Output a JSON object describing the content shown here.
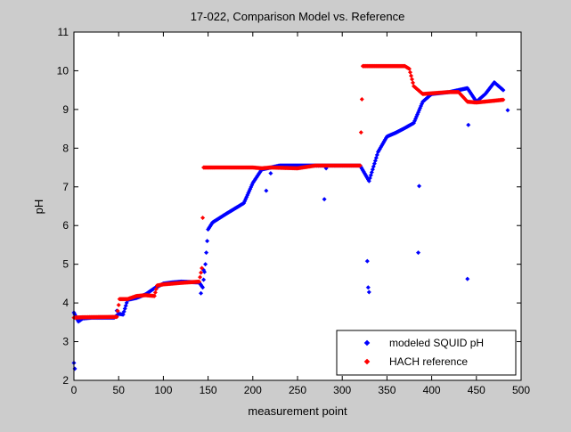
{
  "chart_data": {
    "type": "scatter",
    "title": "17-022, Comparison Model vs. Reference",
    "xlabel": "measurement point",
    "ylabel": "pH",
    "xlim": [
      0,
      500
    ],
    "ylim": [
      2,
      11
    ],
    "xticks": [
      "0",
      "50",
      "100",
      "150",
      "200",
      "250",
      "300",
      "350",
      "400",
      "450",
      "500"
    ],
    "yticks": [
      "2",
      "3",
      "4",
      "5",
      "6",
      "7",
      "8",
      "9",
      "10",
      "11"
    ],
    "legend_position": "bottom-right",
    "series": [
      {
        "name": "modeled SQUID pH",
        "color": "#0000ff",
        "marker": "diamond",
        "knots": [
          [
            0,
            3.75
          ],
          [
            5,
            3.52
          ],
          [
            10,
            3.6
          ],
          [
            20,
            3.62
          ],
          [
            45,
            3.62
          ],
          [
            50,
            3.72
          ],
          [
            55,
            3.7
          ],
          [
            60,
            4.08
          ],
          [
            70,
            4.13
          ],
          [
            80,
            4.22
          ],
          [
            90,
            4.38
          ],
          [
            100,
            4.5
          ],
          [
            110,
            4.53
          ],
          [
            120,
            4.55
          ],
          [
            140,
            4.53
          ],
          [
            144,
            4.4
          ],
          [
            147,
            5.0
          ],
          [
            150,
            5.9
          ],
          [
            155,
            6.08
          ],
          [
            170,
            6.3
          ],
          [
            190,
            6.58
          ],
          [
            200,
            7.1
          ],
          [
            210,
            7.45
          ],
          [
            220,
            7.5
          ],
          [
            230,
            7.55
          ],
          [
            260,
            7.55
          ],
          [
            300,
            7.55
          ],
          [
            320,
            7.55
          ],
          [
            325,
            7.35
          ],
          [
            330,
            7.15
          ],
          [
            340,
            7.9
          ],
          [
            350,
            8.3
          ],
          [
            360,
            8.4
          ],
          [
            370,
            8.52
          ],
          [
            380,
            8.65
          ],
          [
            390,
            9.2
          ],
          [
            400,
            9.4
          ],
          [
            420,
            9.45
          ],
          [
            440,
            9.55
          ],
          [
            450,
            9.2
          ],
          [
            460,
            9.4
          ],
          [
            470,
            9.7
          ],
          [
            480,
            9.5
          ]
        ],
        "outliers": [
          [
            0,
            2.45
          ],
          [
            1,
            2.3
          ],
          [
            48,
            3.8
          ],
          [
            142,
            4.25
          ],
          [
            145,
            4.85
          ],
          [
            215,
            6.9
          ],
          [
            280,
            6.68
          ],
          [
            282,
            7.48
          ],
          [
            328,
            5.08
          ],
          [
            329,
            4.4
          ],
          [
            330,
            4.28
          ],
          [
            386,
            7.02
          ],
          [
            385,
            5.3
          ],
          [
            440,
            4.62
          ],
          [
            441,
            8.6
          ],
          [
            485,
            8.98
          ],
          [
            220,
            7.35
          ],
          [
            255,
            7.52
          ]
        ]
      },
      {
        "name": "HACH reference",
        "color": "#ff0000",
        "marker": "diamond",
        "knots": [
          [
            0,
            3.62
          ],
          [
            10,
            3.63
          ],
          [
            48,
            3.64
          ],
          [
            51,
            4.1
          ],
          [
            60,
            4.1
          ],
          [
            70,
            4.18
          ],
          [
            80,
            4.2
          ],
          [
            90,
            4.18
          ],
          [
            93,
            4.45
          ],
          [
            100,
            4.48
          ],
          [
            120,
            4.52
          ],
          [
            140,
            4.55
          ],
          [
            143,
            4.9
          ],
          [
            145,
            7.5
          ],
          [
            200,
            7.5
          ],
          [
            210,
            7.48
          ],
          [
            220,
            7.5
          ],
          [
            250,
            7.48
          ],
          [
            270,
            7.55
          ],
          [
            300,
            7.55
          ],
          [
            320,
            7.55
          ],
          [
            323,
            10.12
          ],
          [
            370,
            10.12
          ],
          [
            375,
            10.05
          ],
          [
            380,
            9.6
          ],
          [
            390,
            9.4
          ],
          [
            420,
            9.45
          ],
          [
            430,
            9.45
          ],
          [
            440,
            9.2
          ],
          [
            450,
            9.18
          ],
          [
            480,
            9.25
          ]
        ],
        "outliers": []
      }
    ]
  }
}
